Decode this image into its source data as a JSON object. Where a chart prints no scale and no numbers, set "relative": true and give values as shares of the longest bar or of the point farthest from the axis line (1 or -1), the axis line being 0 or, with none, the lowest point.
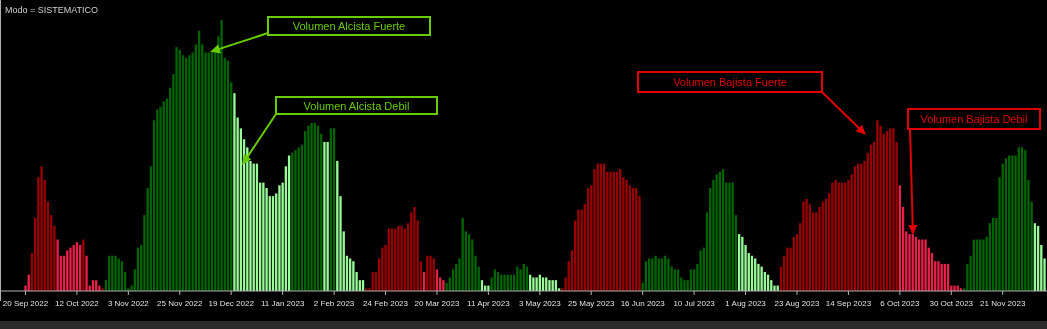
{
  "chart_data": {
    "type": "bar",
    "title": "Modo = SISTEMATICO",
    "relative": true,
    "categories": [
      "20 Sep 2022",
      null,
      null,
      null,
      null,
      null,
      null,
      null,
      null,
      null,
      null,
      null,
      null,
      null,
      null,
      null,
      "12 Oct 2022",
      null,
      null,
      null,
      null,
      null,
      null,
      null,
      null,
      null,
      null,
      null,
      null,
      null,
      null,
      null,
      "3 Nov 2022",
      null,
      null,
      null,
      null,
      null,
      null,
      null,
      null,
      null,
      null,
      null,
      null,
      null,
      null,
      null,
      "25 Nov 2022",
      null,
      null,
      null,
      null,
      null,
      null,
      null,
      null,
      null,
      null,
      null,
      null,
      null,
      null,
      null,
      "19 Dec 2022",
      null,
      null,
      null,
      null,
      null,
      null,
      null,
      null,
      null,
      null,
      null,
      null,
      null,
      null,
      null,
      "11 Jan 2023",
      null,
      null,
      null,
      null,
      null,
      null,
      null,
      null,
      null,
      null,
      null,
      null,
      null,
      null,
      null,
      "2 Feb 2023",
      null,
      null,
      null,
      null,
      null,
      null,
      null,
      null,
      null,
      null,
      null,
      null,
      null,
      null,
      null,
      "24 Feb 2023",
      null,
      null,
      null,
      null,
      null,
      null,
      null,
      null,
      null,
      null,
      null,
      null,
      null,
      null,
      null,
      "20 Mar 2023",
      null,
      null,
      null,
      null,
      null,
      null,
      null,
      null,
      null,
      null,
      null,
      null,
      null,
      null,
      null,
      "11 Apr 2023",
      null,
      null,
      null,
      null,
      null,
      null,
      null,
      null,
      null,
      null,
      null,
      null,
      null,
      null,
      null,
      "3 May 2023",
      null,
      null,
      null,
      null,
      null,
      null,
      null,
      null,
      null,
      null,
      null,
      null,
      null,
      null,
      null,
      "25 May 2023",
      null,
      null,
      null,
      null,
      null,
      null,
      null,
      null,
      null,
      null,
      null,
      null,
      null,
      null,
      null,
      "16 Jun 2023",
      null,
      null,
      null,
      null,
      null,
      null,
      null,
      null,
      null,
      null,
      null,
      null,
      null,
      null,
      null,
      "10 Jul 2023",
      null,
      null,
      null,
      null,
      null,
      null,
      null,
      null,
      null,
      null,
      null,
      null,
      null,
      null,
      null,
      "1 Aug 2023",
      null,
      null,
      null,
      null,
      null,
      null,
      null,
      null,
      null,
      null,
      null,
      null,
      null,
      null,
      null,
      "23 Aug 2023",
      null,
      null,
      null,
      null,
      null,
      null,
      null,
      null,
      null,
      null,
      null,
      null,
      null,
      null,
      null,
      "14 Sep 2023",
      null,
      null,
      null,
      null,
      null,
      null,
      null,
      null,
      null,
      null,
      null,
      null,
      null,
      null,
      null,
      "6 Oct 2023",
      null,
      null,
      null,
      null,
      null,
      null,
      null,
      null,
      null,
      null,
      null,
      null,
      null,
      null,
      null,
      "30 Oct 2023",
      null,
      null,
      null,
      null,
      null,
      null,
      null,
      null,
      null,
      null,
      null,
      null,
      null,
      null,
      null,
      "21 Nov 2023",
      null,
      null,
      null,
      null,
      null,
      null,
      null,
      null,
      null,
      null,
      null,
      null,
      null
    ],
    "values": [
      0.02,
      0.06,
      0.14,
      0.27,
      0.42,
      0.46,
      0.41,
      0.33,
      0.28,
      0.24,
      0.19,
      0.13,
      0.13,
      0.15,
      0.16,
      0.17,
      0.18,
      0.17,
      0.19,
      0.13,
      0.02,
      0.04,
      0.04,
      0.02,
      0.01,
      0.04,
      0.13,
      0.13,
      0.13,
      0.12,
      0.11,
      0.07,
      0.01,
      0.02,
      0.08,
      0.16,
      0.17,
      0.28,
      0.38,
      0.46,
      0.63,
      0.67,
      0.68,
      0.7,
      0.71,
      0.75,
      0.8,
      0.9,
      0.89,
      0.87,
      0.86,
      0.87,
      0.88,
      0.91,
      0.96,
      0.91,
      0.88,
      0.88,
      0.88,
      0.88,
      0.94,
      1.0,
      0.86,
      0.85,
      0.77,
      0.73,
      0.64,
      0.6,
      0.56,
      0.53,
      0.48,
      0.47,
      0.47,
      0.4,
      0.4,
      0.38,
      0.35,
      0.35,
      0.36,
      0.39,
      0.4,
      0.46,
      0.5,
      0.51,
      0.52,
      0.53,
      0.54,
      0.59,
      0.61,
      0.62,
      0.62,
      0.61,
      0.58,
      0.55,
      0.55,
      0.6,
      0.6,
      0.48,
      0.35,
      0.22,
      0.13,
      0.12,
      0.11,
      0.07,
      0.04,
      0.04,
      0.01,
      0.01,
      0.07,
      0.07,
      0.12,
      0.16,
      0.17,
      0.23,
      0.23,
      0.23,
      0.24,
      0.24,
      0.23,
      0.25,
      0.29,
      0.31,
      0.26,
      0.11,
      0.07,
      0.13,
      0.13,
      0.12,
      0.08,
      0.05,
      0.04,
      0.03,
      0.05,
      0.08,
      0.1,
      0.12,
      0.27,
      0.22,
      0.21,
      0.19,
      0.13,
      0.09,
      0.04,
      0.02,
      0.02,
      0.05,
      0.08,
      0.07,
      0.06,
      0.06,
      0.06,
      0.06,
      0.06,
      0.09,
      0.08,
      0.1,
      0.09,
      0.06,
      0.05,
      0.05,
      0.06,
      0.05,
      0.05,
      0.04,
      0.04,
      0.04,
      0.01,
      0.01,
      0.05,
      0.11,
      0.15,
      0.26,
      0.3,
      0.3,
      0.32,
      0.38,
      0.39,
      0.45,
      0.47,
      0.47,
      0.47,
      0.44,
      0.44,
      0.44,
      0.44,
      0.45,
      0.42,
      0.41,
      0.39,
      0.38,
      0.38,
      0.35,
      0.03,
      0.11,
      0.12,
      0.12,
      0.13,
      0.12,
      0.12,
      0.13,
      0.12,
      0.09,
      0.08,
      0.08,
      0.05,
      0.04,
      0.04,
      0.08,
      0.08,
      0.1,
      0.15,
      0.16,
      0.29,
      0.38,
      0.41,
      0.43,
      0.44,
      0.45,
      0.4,
      0.4,
      0.4,
      0.28,
      0.21,
      0.2,
      0.17,
      0.14,
      0.13,
      0.12,
      0.1,
      0.09,
      0.07,
      0.06,
      0.04,
      0.02,
      0.02,
      0.09,
      0.13,
      0.16,
      0.16,
      0.2,
      0.21,
      0.25,
      0.33,
      0.34,
      0.32,
      0.29,
      0.29,
      0.31,
      0.33,
      0.34,
      0.36,
      0.4,
      0.41,
      0.4,
      0.4,
      0.4,
      0.41,
      0.43,
      0.46,
      0.47,
      0.47,
      0.48,
      0.51,
      0.54,
      0.55,
      0.63,
      0.61,
      0.58,
      0.59,
      0.6,
      0.6,
      0.55,
      0.39,
      0.31,
      0.22,
      0.21,
      0.21,
      0.2,
      0.19,
      0.19,
      0.19,
      0.16,
      0.14,
      0.11,
      0.11,
      0.1,
      0.1,
      0.1,
      0.02,
      0.02,
      0.02,
      0.01,
      0.01,
      0.1,
      0.13,
      0.19,
      0.19,
      0.19,
      0.19,
      0.2,
      0.25,
      0.27,
      0.27,
      0.42,
      0.47,
      0.49,
      0.5,
      0.5,
      0.5,
      0.53,
      0.53,
      0.52,
      0.41,
      0.33,
      0.25,
      0.24,
      0.17,
      0.12
    ],
    "colors": [
      "#e8204a",
      "#e8204a",
      "#990000",
      "#990000",
      "#990000",
      "#990000",
      "#990000",
      "#990000",
      "#990000",
      "#990000",
      "#e8204a",
      "#e8204a",
      "#e8204a",
      "#e8204a",
      "#e8204a",
      "#e8204a",
      "#e8204a",
      "#e8204a",
      "#990000",
      "#e8204a",
      "#e8204a",
      "#e8204a",
      "#e8204a",
      "#e8204a",
      "#990000",
      "#006400",
      "#006400",
      "#006400",
      "#006400",
      "#006400",
      "#006400",
      "#006400",
      "#006400",
      "#006400",
      "#006400",
      "#006400",
      "#006400",
      "#006400",
      "#006400",
      "#006400",
      "#006400",
      "#006400",
      "#006400",
      "#006400",
      "#006400",
      "#006400",
      "#006400",
      "#006400",
      "#006400",
      "#006400",
      "#006400",
      "#006400",
      "#006400",
      "#006400",
      "#006400",
      "#006400",
      "#006400",
      "#006400",
      "#006400",
      "#006400",
      "#006400",
      "#006400",
      "#006400",
      "#006400",
      "#006400",
      "#98fb98",
      "#98fb98",
      "#98fb98",
      "#98fb98",
      "#98fb98",
      "#98fb98",
      "#98fb98",
      "#98fb98",
      "#98fb98",
      "#98fb98",
      "#98fb98",
      "#98fb98",
      "#98fb98",
      "#98fb98",
      "#98fb98",
      "#98fb98",
      "#98fb98",
      "#98fb98",
      "#006400",
      "#006400",
      "#006400",
      "#006400",
      "#006400",
      "#006400",
      "#006400",
      "#006400",
      "#006400",
      "#006400",
      "#98fb98",
      "#98fb98",
      "#006400",
      "#006400",
      "#98fb98",
      "#98fb98",
      "#98fb98",
      "#98fb98",
      "#98fb98",
      "#98fb98",
      "#98fb98",
      "#98fb98",
      "#98fb98",
      "#990000",
      "#990000",
      "#990000",
      "#990000",
      "#990000",
      "#990000",
      "#990000",
      "#990000",
      "#990000",
      "#990000",
      "#990000",
      "#990000",
      "#990000",
      "#990000",
      "#990000",
      "#990000",
      "#990000",
      "#990000",
      "#e8204a",
      "#990000",
      "#990000",
      "#990000",
      "#e8204a",
      "#e8204a",
      "#e8204a",
      "#006400",
      "#006400",
      "#006400",
      "#006400",
      "#006400",
      "#006400",
      "#006400",
      "#006400",
      "#006400",
      "#006400",
      "#006400",
      "#98fb98",
      "#98fb98",
      "#98fb98",
      "#006400",
      "#006400",
      "#006400",
      "#006400",
      "#006400",
      "#006400",
      "#006400",
      "#006400",
      "#006400",
      "#006400",
      "#006400",
      "#006400",
      "#98fb98",
      "#98fb98",
      "#98fb98",
      "#98fb98",
      "#98fb98",
      "#98fb98",
      "#98fb98",
      "#98fb98",
      "#98fb98",
      "#98fb98",
      "#990000",
      "#990000",
      "#990000",
      "#990000",
      "#990000",
      "#990000",
      "#990000",
      "#990000",
      "#990000",
      "#990000",
      "#990000",
      "#990000",
      "#990000",
      "#990000",
      "#990000",
      "#990000",
      "#990000",
      "#990000",
      "#990000",
      "#990000",
      "#990000",
      "#990000",
      "#990000",
      "#990000",
      "#990000",
      "#006400",
      "#006400",
      "#006400",
      "#006400",
      "#006400",
      "#006400",
      "#006400",
      "#006400",
      "#006400",
      "#006400",
      "#006400",
      "#006400",
      "#006400",
      "#006400",
      "#006400",
      "#006400",
      "#006400",
      "#006400",
      "#006400",
      "#006400",
      "#006400",
      "#006400",
      "#006400",
      "#006400",
      "#006400",
      "#006400",
      "#006400",
      "#006400",
      "#006400",
      "#006400",
      "#98fb98",
      "#98fb98",
      "#98fb98",
      "#98fb98",
      "#98fb98",
      "#98fb98",
      "#98fb98",
      "#98fb98",
      "#98fb98",
      "#98fb98",
      "#98fb98",
      "#98fb98",
      "#98fb98",
      "#990000",
      "#990000",
      "#990000",
      "#990000",
      "#990000",
      "#990000",
      "#990000",
      "#990000",
      "#990000",
      "#990000",
      "#990000",
      "#990000",
      "#990000",
      "#990000",
      "#990000",
      "#990000",
      "#990000",
      "#990000",
      "#990000",
      "#990000",
      "#990000",
      "#990000",
      "#990000",
      "#990000",
      "#990000",
      "#990000",
      "#990000",
      "#990000",
      "#990000",
      "#990000",
      "#990000",
      "#990000",
      "#990000",
      "#990000",
      "#990000",
      "#990000",
      "#990000",
      "#e8204a",
      "#e8204a",
      "#e8204a",
      "#e8204a",
      "#e8204a",
      "#e8204a",
      "#e8204a",
      "#e8204a",
      "#e8204a",
      "#e8204a",
      "#e8204a",
      "#e8204a",
      "#e8204a",
      "#e8204a",
      "#e8204a",
      "#e8204a",
      "#e8204a",
      "#e8204a",
      "#e8204a",
      "#e8204a",
      "#006400",
      "#006400",
      "#006400",
      "#006400",
      "#006400",
      "#006400",
      "#006400",
      "#006400",
      "#006400",
      "#006400",
      "#006400",
      "#006400",
      "#006400",
      "#006400",
      "#006400",
      "#006400",
      "#006400",
      "#006400",
      "#006400",
      "#006400",
      "#006400",
      "#006400",
      "#98fb98",
      "#98fb98",
      "#98fb98",
      "#98fb98"
    ],
    "annotations": [
      "Volumen Alcista Fuerte",
      "Volumen Alcista Debil",
      "Volumen Bajista Fuerte",
      "Volumen Bajista Debil"
    ]
  }
}
